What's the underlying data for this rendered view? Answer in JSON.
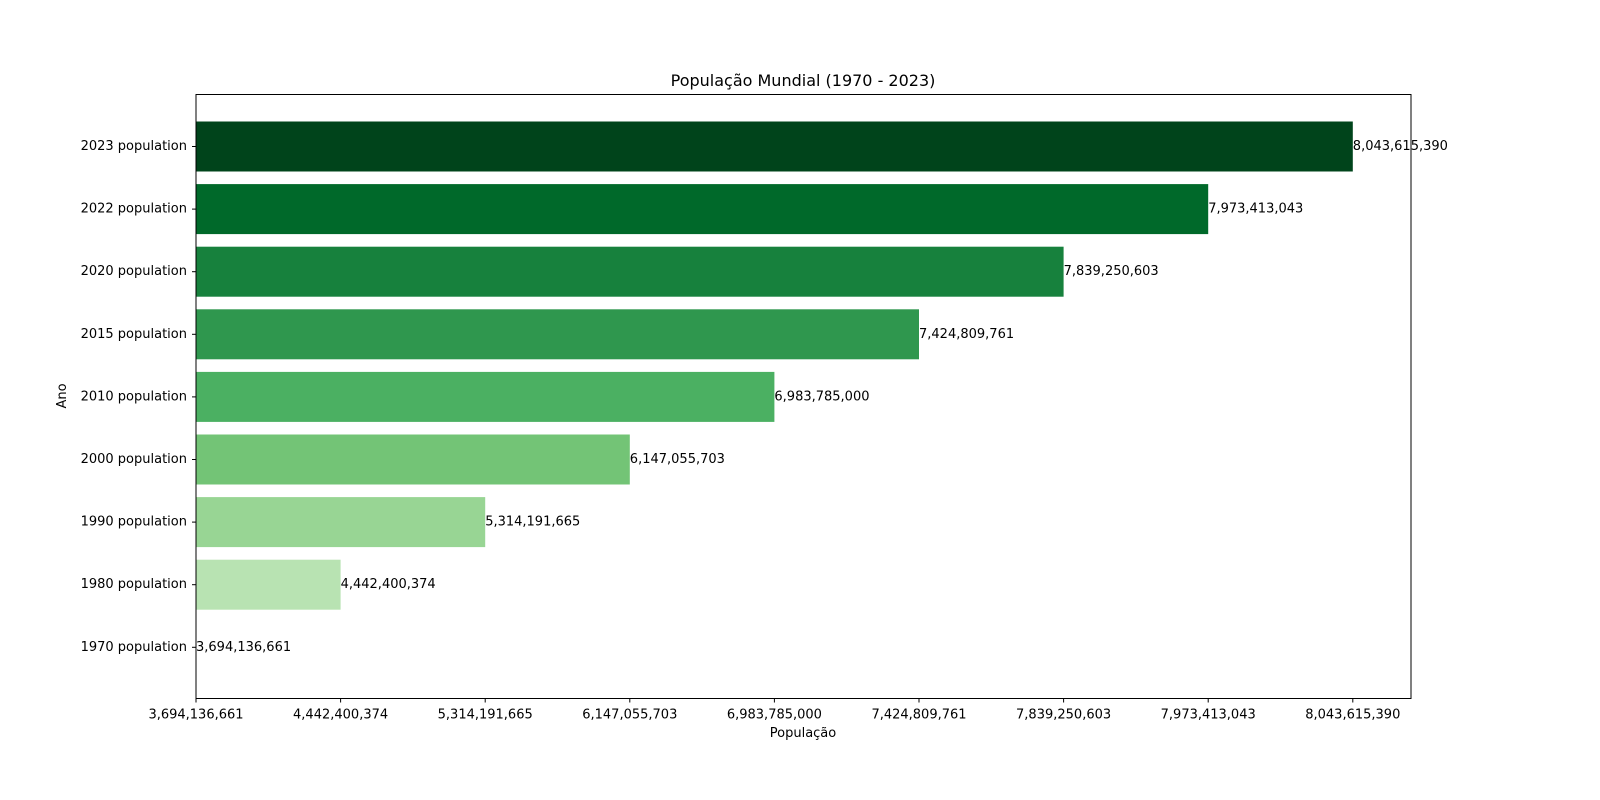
{
  "chart_data": {
    "type": "bar",
    "orientation": "horizontal",
    "title": "População Mundial (1970 - 2023)",
    "xlabel": "População",
    "ylabel": "Ano",
    "categories": [
      "1970 population",
      "1980 population",
      "1990 population",
      "2000 population",
      "2010 population",
      "2015 population",
      "2020 population",
      "2022 population",
      "2023 population"
    ],
    "values": [
      3694136661,
      4442400374,
      5314191665,
      6147055703,
      6983785000,
      7424809761,
      7839250603,
      7973413043,
      8043615390
    ],
    "value_labels": [
      "3,694,136,661",
      "4,442,400,374",
      "5,314,191,665",
      "6,147,055,703",
      "6,983,785,000",
      "7,424,809,761",
      "7,839,250,603",
      "7,973,413,043",
      "8,043,615,390"
    ],
    "x_tick_labels": [
      "3,694,136,661",
      "4,442,400,374",
      "5,314,191,665",
      "6,147,055,703",
      "6,983,785,000",
      "7,424,809,761",
      "7,839,250,603",
      "7,973,413,043",
      "8,043,615,390"
    ],
    "x_scale": "categorical (bar length by rank of value)",
    "colors": [
      "#f7fcf5",
      "#b8e3b2",
      "#98d594",
      "#73c476",
      "#4bb062",
      "#2f974e",
      "#17813d",
      "#00692a",
      "#00441b"
    ],
    "colormap": "Greens",
    "grid": false,
    "legend": "none"
  }
}
